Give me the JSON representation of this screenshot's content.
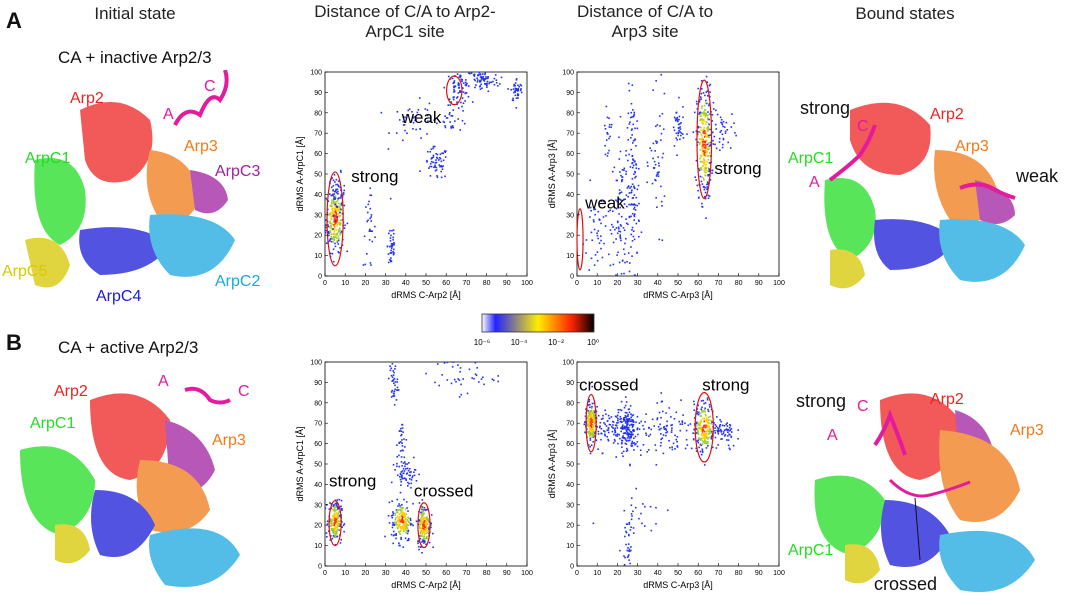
{
  "headers": {
    "initial": "Initial state",
    "arp2": "Distance of C/A to Arp2-ArpC1 site",
    "arp3": "Distance of C/A to Arp3 site",
    "bound": "Bound states"
  },
  "panels": {
    "a": {
      "letter": "A",
      "subtitle": "CA + inactive Arp2/3",
      "initial_labels": {
        "arp2": "Arp2",
        "arp3": "Arp3",
        "arpc1": "ArpC1",
        "arpc3": "ArpC3",
        "arpc5": "ArpC5",
        "arpc4": "ArpC4",
        "arpc2": "ArpC2",
        "a": "A",
        "c": "C"
      },
      "bound_labels": {
        "strong": "strong",
        "arp2": "Arp2",
        "c": "C",
        "arp3": "Arp3",
        "arpc1": "ArpC1",
        "a": "A",
        "weak": "weak"
      }
    },
    "b": {
      "letter": "B",
      "subtitle": "CA + active Arp2/3",
      "initial_labels": {
        "arp2": "Arp2",
        "arpc1": "ArpC1",
        "arp3": "Arp3",
        "a": "A",
        "c": "C"
      },
      "bound_labels": {
        "strong": "strong",
        "c": "C",
        "arp2": "Arp2",
        "a": "A",
        "arp3": "Arp3",
        "arpc1": "ArpC1",
        "crossed": "crossed"
      }
    }
  },
  "colorbar": {
    "ticks": [
      "10⁻⁶",
      "10⁻⁴",
      "10⁻²",
      "10⁰"
    ],
    "colors": [
      "#ffffff",
      "#2222ff",
      "#ffee00",
      "#ff2200",
      "#000000"
    ]
  },
  "colors": {
    "arp2": "#ee2222",
    "arp3": "#f07a18",
    "arpc1": "#22dd22",
    "arpc2": "#1aa8e0",
    "arpc3": "#a020a0",
    "arpc4": "#1a1ad8",
    "arpc5": "#d8c800",
    "ca": "#e21c9c",
    "ellipse": "#dd1111"
  },
  "chart_data": [
    {
      "id": "a-arp2",
      "type": "scatter",
      "title": "",
      "xlabel": "dRMS C-Arp2 [Å]",
      "ylabel": "dRMS A-ArpC1 [Å]",
      "xlim": [
        0,
        100
      ],
      "ylim": [
        0,
        100
      ],
      "xticks": [
        "0",
        "10",
        "20",
        "30",
        "40",
        "50",
        "60",
        "70",
        "80",
        "90",
        "100"
      ],
      "yticks": [
        "0",
        "10",
        "20",
        "30",
        "40",
        "50",
        "60",
        "70",
        "80",
        "90",
        "100"
      ],
      "clusters": [
        {
          "x": 5,
          "y": 28,
          "sx": 2.2,
          "sy": 8,
          "n": 260,
          "dense": true
        },
        {
          "x": 6,
          "y": 40,
          "sx": 2,
          "sy": 5,
          "n": 40,
          "dense": false
        },
        {
          "x": 22,
          "y": 22,
          "sx": 1.5,
          "sy": 9,
          "n": 30,
          "dense": false
        },
        {
          "x": 33,
          "y": 15,
          "sx": 1,
          "sy": 7,
          "n": 40,
          "dense": false
        },
        {
          "x": 55,
          "y": 55,
          "sx": 3,
          "sy": 4,
          "n": 60,
          "dense": false
        },
        {
          "x": 45,
          "y": 75,
          "sx": 6,
          "sy": 5,
          "n": 40,
          "dense": false
        },
        {
          "x": 63,
          "y": 77,
          "sx": 4,
          "sy": 3,
          "n": 25,
          "dense": false
        },
        {
          "x": 66,
          "y": 92,
          "sx": 3,
          "sy": 4,
          "n": 70,
          "dense": false
        },
        {
          "x": 78,
          "y": 96,
          "sx": 4,
          "sy": 3,
          "n": 80,
          "dense": false
        },
        {
          "x": 95,
          "y": 91,
          "sx": 1.5,
          "sy": 3,
          "n": 40,
          "dense": false
        }
      ],
      "annotations": [
        {
          "text": "strong",
          "x": 13,
          "y": 46
        },
        {
          "text": "weak",
          "x": 38,
          "y": 75
        }
      ],
      "ellipses": [
        {
          "cx": 5,
          "cy": 28,
          "rx": 4,
          "ry": 23
        },
        {
          "cx": 64,
          "cy": 91,
          "rx": 3.8,
          "ry": 7
        }
      ]
    },
    {
      "id": "a-arp3",
      "type": "scatter",
      "title": "",
      "xlabel": "dRMS C-Arp3 [Å]",
      "ylabel": "dRMS A-Arp3 [Å]",
      "xlim": [
        0,
        100
      ],
      "ylim": [
        0,
        100
      ],
      "xticks": [
        "0",
        "10",
        "20",
        "30",
        "40",
        "50",
        "60",
        "70",
        "80",
        "90",
        "100"
      ],
      "yticks": [
        "0",
        "10",
        "20",
        "30",
        "40",
        "50",
        "60",
        "70",
        "80",
        "90",
        "100"
      ],
      "clusters": [
        {
          "x": 63,
          "y": 65,
          "sx": 1.8,
          "sy": 14,
          "n": 300,
          "dense": true
        },
        {
          "x": 28,
          "y": 45,
          "sx": 1.5,
          "sy": 22,
          "n": 120,
          "dense": false
        },
        {
          "x": 22,
          "y": 30,
          "sx": 2,
          "sy": 20,
          "n": 80,
          "dense": false
        },
        {
          "x": 12,
          "y": 20,
          "sx": 5,
          "sy": 12,
          "n": 60,
          "dense": false
        },
        {
          "x": 40,
          "y": 55,
          "sx": 2,
          "sy": 15,
          "n": 50,
          "dense": false
        },
        {
          "x": 50,
          "y": 72,
          "sx": 1.5,
          "sy": 6,
          "n": 40,
          "dense": false
        },
        {
          "x": 72,
          "y": 70,
          "sx": 3,
          "sy": 6,
          "n": 40,
          "dense": false
        },
        {
          "x": 15,
          "y": 70,
          "sx": 1,
          "sy": 5,
          "n": 20,
          "dense": false
        }
      ],
      "annotations": [
        {
          "text": "weak",
          "x": 4,
          "y": 33
        },
        {
          "text": "strong",
          "x": 68,
          "y": 50
        },
        {
          "text": "",
          "x": 0,
          "y": 0
        }
      ],
      "ellipses": [
        {
          "cx": 63,
          "cy": 67,
          "rx": 3.6,
          "ry": 29
        },
        {
          "cx": 1.5,
          "cy": 18,
          "rx": 1.5,
          "ry": 15
        }
      ]
    },
    {
      "id": "b-arp2",
      "type": "scatter",
      "title": "",
      "xlabel": "dRMS C-Arp2 [Å]",
      "ylabel": "dRMS A-ArpC1 [Å]",
      "xlim": [
        0,
        100
      ],
      "ylim": [
        0,
        100
      ],
      "xticks": [
        "0",
        "10",
        "20",
        "30",
        "40",
        "50",
        "60",
        "70",
        "80",
        "90",
        "100"
      ],
      "yticks": [
        "0",
        "10",
        "20",
        "30",
        "40",
        "50",
        "60",
        "70",
        "80",
        "90",
        "100"
      ],
      "clusters": [
        {
          "x": 5,
          "y": 22,
          "sx": 1.6,
          "sy": 5,
          "n": 200,
          "dense": true
        },
        {
          "x": 38,
          "y": 22,
          "sx": 2.5,
          "sy": 5,
          "n": 180,
          "dense": true
        },
        {
          "x": 49,
          "y": 20,
          "sx": 1.6,
          "sy": 5,
          "n": 180,
          "dense": true
        },
        {
          "x": 40,
          "y": 45,
          "sx": 2.5,
          "sy": 3,
          "n": 60,
          "dense": false
        },
        {
          "x": 38,
          "y": 60,
          "sx": 1.2,
          "sy": 6,
          "n": 30,
          "dense": false
        },
        {
          "x": 34,
          "y": 90,
          "sx": 1,
          "sy": 6,
          "n": 40,
          "dense": false
        },
        {
          "x": 65,
          "y": 93,
          "sx": 10,
          "sy": 4,
          "n": 40,
          "dense": false
        }
      ],
      "annotations": [
        {
          "text": "strong",
          "x": 2,
          "y": 39
        },
        {
          "text": "crossed",
          "x": 44,
          "y": 34
        }
      ],
      "ellipses": [
        {
          "cx": 5,
          "cy": 21,
          "rx": 3,
          "ry": 11
        },
        {
          "cx": 49,
          "cy": 20,
          "rx": 3,
          "ry": 11
        }
      ]
    },
    {
      "id": "b-arp3",
      "type": "scatter",
      "title": "",
      "xlabel": "dRMS C-Arp3 [Å]",
      "ylabel": "dRMS A-Arp3 [Å]",
      "xlim": [
        0,
        100
      ],
      "ylim": [
        0,
        100
      ],
      "xticks": [
        "0",
        "10",
        "20",
        "30",
        "40",
        "50",
        "60",
        "70",
        "80",
        "90",
        "100"
      ],
      "yticks": [
        "0",
        "10",
        "20",
        "30",
        "40",
        "50",
        "60",
        "70",
        "80",
        "90",
        "100"
      ],
      "clusters": [
        {
          "x": 7,
          "y": 70,
          "sx": 1.5,
          "sy": 5,
          "n": 200,
          "dense": true
        },
        {
          "x": 63,
          "y": 68,
          "sx": 2.5,
          "sy": 6,
          "n": 220,
          "dense": true
        },
        {
          "x": 25,
          "y": 68,
          "sx": 2,
          "sy": 6,
          "n": 150,
          "dense": false
        },
        {
          "x": 18,
          "y": 67,
          "sx": 4,
          "sy": 5,
          "n": 90,
          "dense": false
        },
        {
          "x": 45,
          "y": 65,
          "sx": 8,
          "sy": 6,
          "n": 100,
          "dense": false
        },
        {
          "x": 73,
          "y": 65,
          "sx": 3,
          "sy": 4,
          "n": 60,
          "dense": false
        },
        {
          "x": 25,
          "y": 10,
          "sx": 1.5,
          "sy": 8,
          "n": 40,
          "dense": false
        },
        {
          "x": 30,
          "y": 30,
          "sx": 8,
          "sy": 8,
          "n": 20,
          "dense": false
        }
      ],
      "annotations": [
        {
          "text": "crossed",
          "x": 1,
          "y": 86
        },
        {
          "text": "strong",
          "x": 62,
          "y": 86
        }
      ],
      "ellipses": [
        {
          "cx": 7,
          "cy": 70,
          "rx": 2.5,
          "ry": 14
        },
        {
          "cx": 63,
          "cy": 68,
          "rx": 4.5,
          "ry": 17
        }
      ]
    }
  ]
}
